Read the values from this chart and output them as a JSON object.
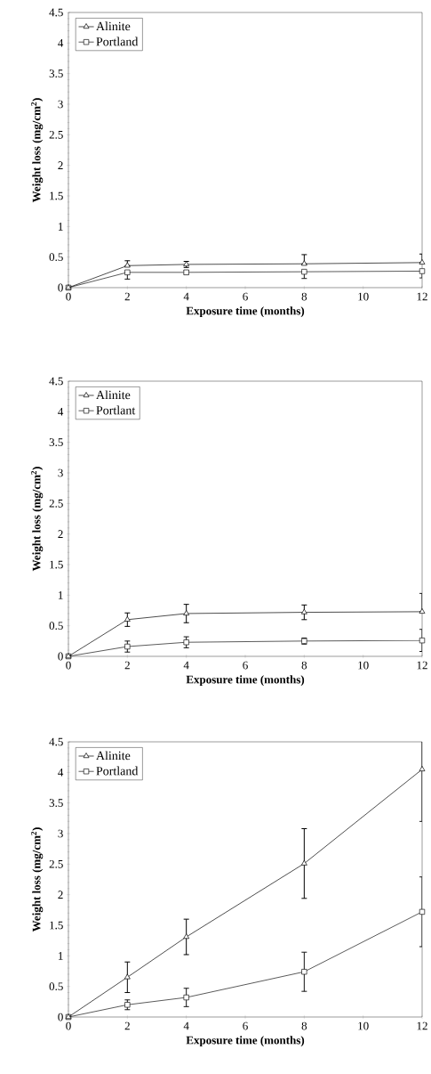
{
  "chart_data": [
    {
      "type": "line",
      "xlabel": "Exposure time (months)",
      "ylabel": "Weight loss (mg/cm$^{2}$)",
      "x": [
        0,
        2,
        4,
        8,
        12
      ],
      "xlim": [
        0,
        12
      ],
      "xticks": [
        0,
        2,
        4,
        6,
        8,
        10,
        12
      ],
      "ylim": [
        0,
        4.5
      ],
      "yticks": [
        0,
        0.5,
        1,
        1.5,
        2,
        2.5,
        3,
        3.5,
        4,
        4.5
      ],
      "legend": "top left",
      "grid": false,
      "line_style": "solid",
      "series": [
        {
          "name": "Alinite",
          "color": "#000000",
          "marker": "triangle",
          "values": [
            0,
            0.36,
            0.38,
            0.39,
            0.41
          ],
          "errors": [
            null,
            [
              0.36,
              0.44
            ],
            0.05,
            [
              0.39,
              0.54
            ],
            [
              0.41,
              0.55
            ]
          ]
        },
        {
          "name": "Portland",
          "color": "#141414",
          "marker": "square",
          "values": [
            0,
            0.25,
            0.25,
            0.26,
            0.27
          ],
          "errors": [
            null,
            [
              0.14,
              0.25
            ],
            0.03,
            [
              0.15,
              0.26
            ],
            [
              0.16,
              0.27
            ]
          ]
        }
      ]
    },
    {
      "type": "line",
      "xlabel": "Exposure time (months)",
      "ylabel": "Weight loss (mg/cm$^{2}$)",
      "x": [
        0,
        2,
        4,
        8,
        12
      ],
      "xlim": [
        0,
        12
      ],
      "xticks": [
        0,
        2,
        4,
        6,
        8,
        10,
        12
      ],
      "ylim": [
        0,
        4.5
      ],
      "yticks": [
        0,
        0.5,
        1,
        1.5,
        2,
        2.5,
        3,
        3.5,
        4,
        4.5
      ],
      "legend": "top left",
      "grid": false,
      "line_style": "solid",
      "series": [
        {
          "name": "Alinite",
          "color": "#000000",
          "marker": "triangle",
          "values": [
            0,
            0.6,
            0.7,
            0.72,
            0.73
          ],
          "errors": [
            null,
            0.11,
            0.15,
            0.12,
            [
              0.73,
              1.03
            ]
          ]
        },
        {
          "name": "Portlant",
          "color": "#141414",
          "marker": "square",
          "values": [
            0,
            0.16,
            0.23,
            0.25,
            0.26
          ],
          "errors": [
            null,
            0.09,
            0.09,
            0.05,
            0.18
          ]
        }
      ]
    },
    {
      "type": "line",
      "xlabel": "Exposure time (months)",
      "ylabel": "Weight loss (mg/cm$^{2}$)",
      "x": [
        0,
        2,
        4,
        8,
        12
      ],
      "xlim": [
        0,
        12
      ],
      "xticks": [
        0,
        2,
        4,
        6,
        8,
        10,
        12
      ],
      "ylim": [
        0,
        4.5
      ],
      "yticks": [
        0,
        0.5,
        1,
        1.5,
        2,
        2.5,
        3,
        3.5,
        4,
        4.5
      ],
      "legend": "top left",
      "grid": false,
      "line_style": "solid",
      "series": [
        {
          "name": "Alinite",
          "color": "#000000",
          "marker": "triangle",
          "values": [
            0,
            0.65,
            1.31,
            2.51,
            4.05
          ],
          "errors": [
            null,
            0.25,
            0.29,
            0.57,
            0.85
          ]
        },
        {
          "name": "Portland",
          "color": "#141414",
          "marker": "square",
          "values": [
            0,
            0.2,
            0.32,
            0.74,
            1.72
          ],
          "errors": [
            null,
            0.08,
            0.15,
            0.32,
            0.57
          ]
        }
      ]
    }
  ]
}
